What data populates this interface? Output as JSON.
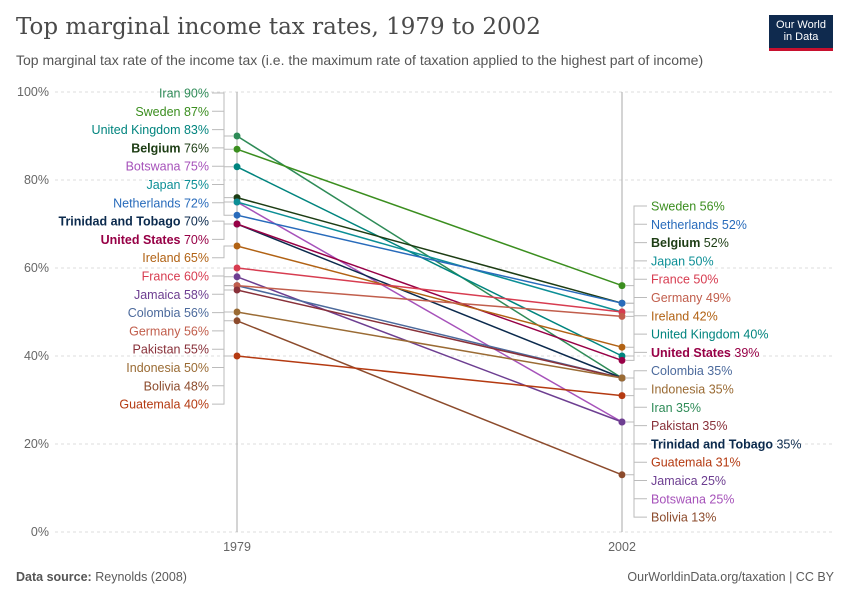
{
  "header": {
    "title": "Top marginal income tax rates, 1979 to 2002",
    "subtitle": "Top marginal tax rate of the income tax (i.e. the maximum rate of taxation applied to the highest part of income)"
  },
  "logo": {
    "line1": "Our World",
    "line2": "in Data"
  },
  "footer": {
    "source_label": "Data source:",
    "source_value": "Reynolds (2008)",
    "credit": "OurWorldinData.org/taxation | CC BY"
  },
  "chart_data": {
    "type": "line",
    "title": "Top marginal income tax rates, 1979 to 2002",
    "x": [
      "1979",
      "2002"
    ],
    "y_ticks": [
      "0%",
      "20%",
      "40%",
      "60%",
      "80%",
      "100%"
    ],
    "ylim": [
      0,
      100
    ],
    "unit": "%",
    "grid": true,
    "series": [
      {
        "name": "Iran",
        "values": [
          90,
          35
        ],
        "color": "#2e8b57"
      },
      {
        "name": "Sweden",
        "values": [
          87,
          56
        ],
        "color": "#3b8e1f"
      },
      {
        "name": "United Kingdom",
        "values": [
          83,
          40
        ],
        "color": "#00847e"
      },
      {
        "name": "Belgium",
        "values": [
          76,
          52
        ],
        "color": "#1d3d14"
      },
      {
        "name": "Botswana",
        "values": [
          75,
          25
        ],
        "color": "#a652ba"
      },
      {
        "name": "Japan",
        "values": [
          75,
          50
        ],
        "color": "#0c8f96"
      },
      {
        "name": "Netherlands",
        "values": [
          72,
          52
        ],
        "color": "#286bbb"
      },
      {
        "name": "Trinidad and Tobago",
        "values": [
          70,
          35
        ],
        "color": "#0b2a4d"
      },
      {
        "name": "United States",
        "values": [
          70,
          39
        ],
        "color": "#970046"
      },
      {
        "name": "Ireland",
        "values": [
          65,
          42
        ],
        "color": "#b16214"
      },
      {
        "name": "France",
        "values": [
          60,
          50
        ],
        "color": "#d73c50"
      },
      {
        "name": "Jamaica",
        "values": [
          58,
          25
        ],
        "color": "#6d3e91"
      },
      {
        "name": "Colombia",
        "values": [
          56,
          35
        ],
        "color": "#4c6a9c"
      },
      {
        "name": "Germany",
        "values": [
          56,
          49
        ],
        "color": "#c15e4c"
      },
      {
        "name": "Pakistan",
        "values": [
          55,
          35
        ],
        "color": "#883039"
      },
      {
        "name": "Indonesia",
        "values": [
          50,
          35
        ],
        "color": "#9a6b34"
      },
      {
        "name": "Bolivia",
        "values": [
          48,
          13
        ],
        "color": "#8c4b2c"
      },
      {
        "name": "Guatemala",
        "values": [
          40,
          31
        ],
        "color": "#b43a11"
      }
    ],
    "left_label_order": [
      "Iran",
      "Sweden",
      "United Kingdom",
      "Belgium",
      "Botswana",
      "Japan",
      "Netherlands",
      "Trinidad and Tobago",
      "United States",
      "Ireland",
      "France",
      "Jamaica",
      "Colombia",
      "Germany",
      "Pakistan",
      "Indonesia",
      "Bolivia",
      "Guatemala"
    ],
    "right_label_order": [
      "Sweden",
      "Netherlands",
      "Belgium",
      "Japan",
      "France",
      "Germany",
      "Ireland",
      "United Kingdom",
      "United States",
      "Colombia",
      "Indonesia",
      "Iran",
      "Pakistan",
      "Trinidad and Tobago",
      "Guatemala",
      "Jamaica",
      "Botswana",
      "Bolivia"
    ],
    "bold_labels": [
      "Belgium",
      "Trinidad and Tobago",
      "United States"
    ]
  }
}
